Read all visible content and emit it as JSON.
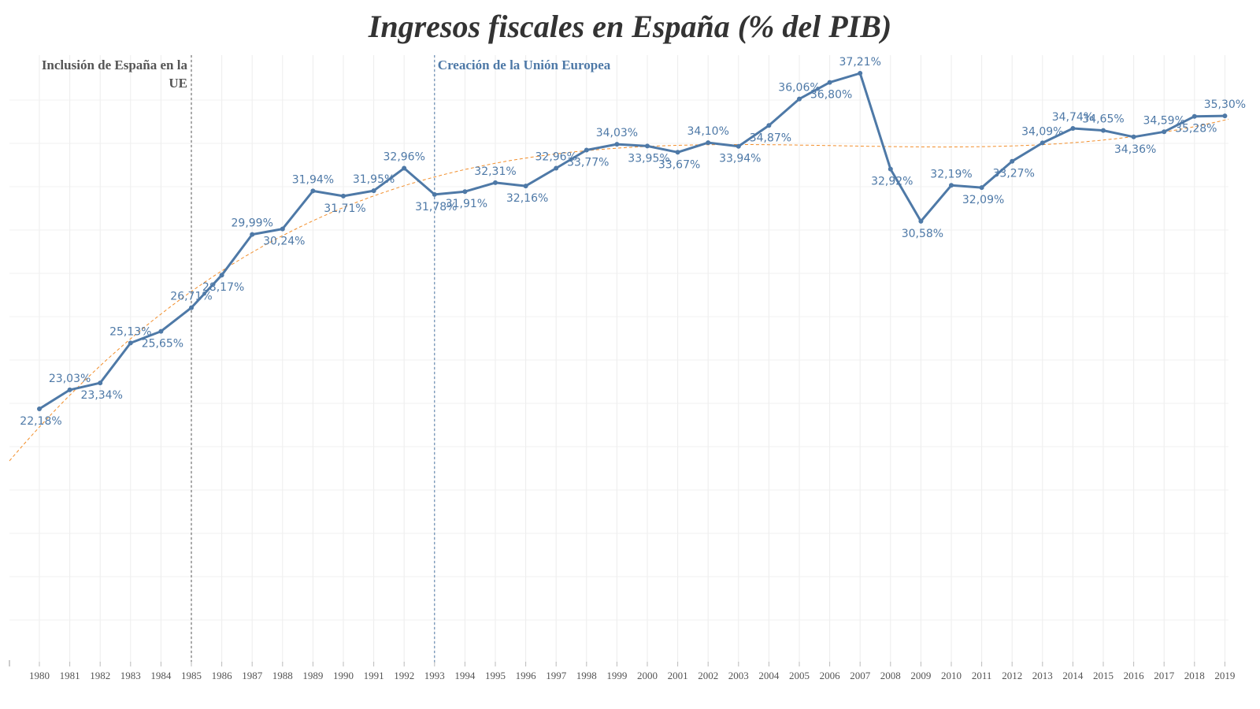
{
  "chart_data": {
    "type": "line",
    "title": "Ingresos fiscales en España (% del PIB)",
    "categories": [
      "1980",
      "1981",
      "1982",
      "1983",
      "1984",
      "1985",
      "1986",
      "1987",
      "1988",
      "1989",
      "1990",
      "1991",
      "1992",
      "1993",
      "1994",
      "1995",
      "1996",
      "1997",
      "1998",
      "1999",
      "2000",
      "2001",
      "2002",
      "2003",
      "2004",
      "2005",
      "2006",
      "2007",
      "2008",
      "2009",
      "2010",
      "2011",
      "2012",
      "2013",
      "2014",
      "2015",
      "2016",
      "2017",
      "2018",
      "2019"
    ],
    "series": [
      {
        "values": [
          22.18,
          23.03,
          23.34,
          25.13,
          25.65,
          26.71,
          28.17,
          29.99,
          30.24,
          31.94,
          31.71,
          31.95,
          32.96,
          31.78,
          31.91,
          32.31,
          32.16,
          32.96,
          33.77,
          34.03,
          33.95,
          33.67,
          34.1,
          33.94,
          34.87,
          36.06,
          36.8,
          37.21,
          32.92,
          30.58,
          32.19,
          32.09,
          33.27,
          34.09,
          34.74,
          34.65,
          34.36,
          34.59,
          35.28,
          35.3
        ],
        "labels": [
          "22,18%",
          "23,03%",
          "23,34%",
          "25,13%",
          "25,65%",
          "26,71%",
          "28,17%",
          "29,99%",
          "30,24%",
          "31,94%",
          "31,71%",
          "31,95%",
          "32,96%",
          "31,78%",
          "31,91%",
          "32,31%",
          "32,16%",
          "32,96%",
          "33,77%",
          "34,03%",
          "33,95%",
          "33,67%",
          "34,10%",
          "33,94%",
          "34,87%",
          "36,06%",
          "36,80%",
          "37,21%",
          "32,92%",
          "30,58%",
          "32,19%",
          "32,09%",
          "33,27%",
          "34,09%",
          "34,74%",
          "34,65%",
          "34,36%",
          "34,59%",
          "35,28%",
          "35,30%"
        ],
        "color": "#4e79a7",
        "trendline": true,
        "trend_color": "#f28e2b"
      }
    ],
    "annotations": [
      {
        "year": "1985",
        "text": "Inclusión de España en la UE",
        "color": "#555555"
      },
      {
        "year": "1993",
        "text": "Creación de la Unión Europea",
        "color": "#4e79a7"
      }
    ],
    "ylim": [
      10,
      39
    ],
    "grid": true
  }
}
